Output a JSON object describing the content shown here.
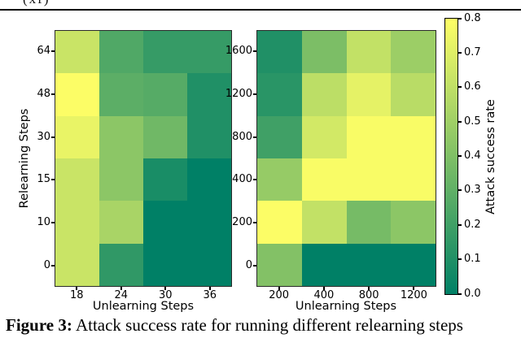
{
  "page": {
    "header_fragment": "(xf)",
    "caption_label": "Figure 3:",
    "caption_text": " Attack success rate for running different relearning steps"
  },
  "chart_data": [
    {
      "type": "heatmap",
      "title": "",
      "xlabel": "Unlearning Steps",
      "ylabel": "Relearning Steps",
      "x_categories": [
        "18",
        "24",
        "30",
        "36"
      ],
      "y_categories": [
        "64",
        "48",
        "30",
        "15",
        "10",
        "0"
      ],
      "values": [
        [
          0.63,
          0.25,
          0.17,
          0.17
        ],
        [
          0.79,
          0.29,
          0.27,
          0.1
        ],
        [
          0.73,
          0.44,
          0.35,
          0.1
        ],
        [
          0.63,
          0.44,
          0.08,
          0.0
        ],
        [
          0.63,
          0.53,
          0.0,
          0.0
        ],
        [
          0.63,
          0.15,
          0.0,
          0.0
        ]
      ],
      "colormap": "summer",
      "vmin": 0.0,
      "vmax": 0.8,
      "legend_position": "none",
      "grid": false
    },
    {
      "type": "heatmap",
      "title": "",
      "xlabel": "Unlearning Steps",
      "ylabel": "",
      "x_categories": [
        "200",
        "400",
        "800",
        "1200"
      ],
      "y_categories": [
        "1600",
        "1200",
        "800",
        "400",
        "200",
        "0"
      ],
      "values": [
        [
          0.1,
          0.39,
          0.61,
          0.49
        ],
        [
          0.13,
          0.59,
          0.72,
          0.58
        ],
        [
          0.2,
          0.66,
          0.78,
          0.78
        ],
        [
          0.47,
          0.78,
          0.78,
          0.78
        ],
        [
          0.79,
          0.61,
          0.37,
          0.44
        ],
        [
          0.41,
          0.0,
          0.0,
          0.0
        ]
      ],
      "colormap": "summer",
      "vmin": 0.0,
      "vmax": 0.8,
      "legend_position": "none",
      "grid": false
    }
  ],
  "colorbar": {
    "label": "Attack success rate",
    "ticks": [
      "0.8",
      "0.7",
      "0.6",
      "0.5",
      "0.4",
      "0.3",
      "0.2",
      "0.1",
      "0.0"
    ],
    "min_color": "#008066",
    "max_color": "#ffff66"
  }
}
